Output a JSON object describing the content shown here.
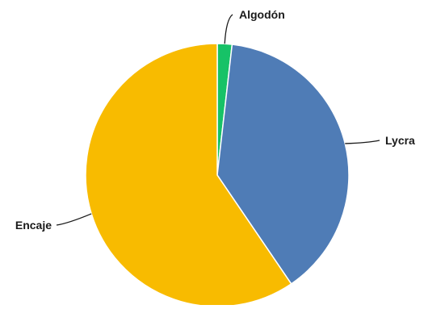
{
  "chart_data": {
    "type": "pie",
    "title": "",
    "slices": [
      {
        "label": "Algodón",
        "value": 1.8,
        "color": "#17c267"
      },
      {
        "label": "Lycra",
        "value": 38.7,
        "color": "#4f7cb6"
      },
      {
        "label": "Encaje",
        "value": 59.5,
        "color": "#f8bb00"
      }
    ],
    "legend": "none",
    "data_labels": "category names with leader lines"
  }
}
